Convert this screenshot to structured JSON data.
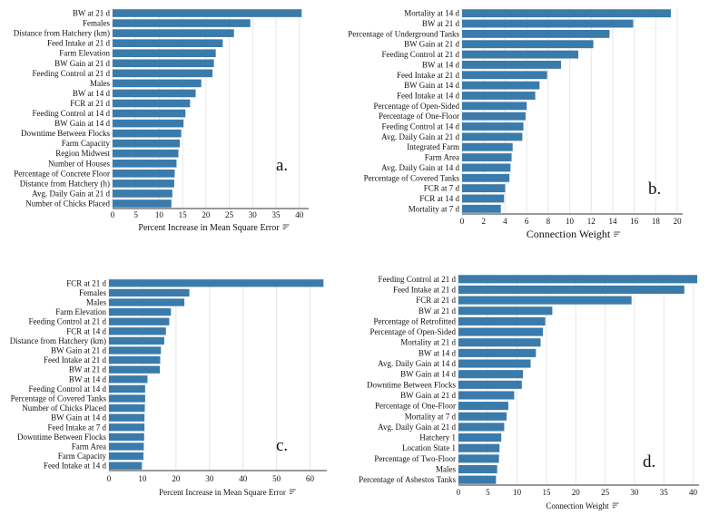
{
  "chart_data": [
    {
      "type": "bar",
      "orientation": "horizontal",
      "panel_label": "a.",
      "xlabel": "Percent Increase in Mean Square Error",
      "axis_icon": "sort-icon",
      "xlim": [
        0,
        42
      ],
      "ticks": [
        "0",
        "5",
        "10",
        "15",
        "20",
        "25",
        "30",
        "35",
        "40"
      ],
      "categories": [
        "BW at 21 d",
        "Females",
        "Distance from Hatchery (km)",
        "Feed Intake at 21 d",
        "Farm Elevation",
        "BW Gain at 21 d",
        "Feeding Control at 21 d",
        "Males",
        "BW at 14 d",
        "FCR at 21 d",
        "Feeding Control at 14 d",
        "BW Gain at 14 d",
        "Downtime Between Flocks",
        "Farm Capacity",
        "Region Midwest",
        "Number of Houses",
        "Percentage of Concrete Floor",
        "Distance from Hatchery (h)",
        "Avg. Daily Gain at 21 d",
        "Number of Chicks Placed"
      ],
      "values": [
        40.5,
        29.5,
        26.0,
        23.6,
        22.1,
        21.7,
        21.4,
        19.0,
        17.8,
        16.6,
        15.6,
        15.2,
        14.7,
        14.4,
        14.1,
        13.7,
        13.3,
        13.2,
        12.8,
        12.6
      ]
    },
    {
      "type": "bar",
      "orientation": "horizontal",
      "panel_label": "b.",
      "xlabel": "Connection Weight",
      "axis_icon": "sort-icon",
      "xlim": [
        0,
        20.5
      ],
      "ticks": [
        "0",
        "2",
        "4",
        "6",
        "8",
        "10",
        "12",
        "14",
        "16",
        "18",
        "20"
      ],
      "categories": [
        "Mortality at 14 d",
        "BW at 21 d",
        "Percentage of Underground Tanks",
        "BW Gain at 21 d",
        "Feeding Control at 21 d",
        "BW at 14 d",
        "Feed Intake at 21 d",
        "BW Gain at 14 d",
        "Feed Intake at 14 d",
        "Percentage of Open-Sided",
        "Percentage of One-Floor",
        "Feeding Control at 14 d",
        "Avg. Daily Gain at 21 d",
        "Integrated Farm",
        "Farm Area",
        "Avg. Daily Gain at 14 d",
        "Percentage of Covered Tanks",
        "FCR at 7 d",
        "FCR at 14 d",
        "Mortality at 7 d"
      ],
      "values": [
        19.4,
        15.9,
        13.7,
        12.2,
        10.8,
        9.2,
        7.9,
        7.2,
        6.8,
        6.0,
        5.9,
        5.7,
        5.6,
        4.7,
        4.6,
        4.5,
        4.4,
        4.0,
        3.9,
        3.6
      ]
    },
    {
      "type": "bar",
      "orientation": "horizontal",
      "panel_label": "c.",
      "xlabel": "Percent Increase in Mean Square Error",
      "axis_icon": "sort-icon",
      "xlim": [
        0,
        65
      ],
      "ticks": [
        "0",
        "10",
        "20",
        "30",
        "40",
        "50",
        "60"
      ],
      "categories": [
        "FCR at 21 d",
        "Females",
        "Males",
        "Farm Elevation",
        "Feeding Control at 21 d",
        "FCR at 14 d",
        "Distance from Hatchery (km)",
        "BW Gain at 21 d",
        "Feed Intake at 21 d",
        "BW at 21 d",
        "BW at 14 d",
        "Feeding Control at 14 d",
        "Percentage of Covered Tanks",
        "Number of Chicks Placed",
        "BW Gain at 14 d",
        "Feed Intake at 7 d",
        "Downtime Between Flocks",
        "Farm Area",
        "Farm Capacity",
        "Feed Intake at 14 d"
      ],
      "values": [
        64.0,
        24.0,
        22.5,
        18.5,
        18.0,
        17.0,
        16.5,
        15.5,
        15.3,
        15.2,
        11.5,
        10.8,
        10.8,
        10.7,
        10.6,
        10.6,
        10.5,
        10.4,
        10.3,
        9.8
      ]
    },
    {
      "type": "bar",
      "orientation": "horizontal",
      "panel_label": "d.",
      "xlabel": "Connection Weight",
      "axis_icon": "sort-icon",
      "xlim": [
        0,
        41
      ],
      "ticks": [
        "0",
        "5",
        "10",
        "15",
        "20",
        "25",
        "30",
        "35",
        "40"
      ],
      "categories": [
        "Feeding Control at 21 d",
        "Feed Intake at 21 d",
        "FCR at 21 d",
        "BW at 21 d",
        "Percentage of Retrofitted",
        "Percentage of Open-Sided",
        "Mortality at 21 d",
        "BW at 14 d",
        "Avg. Daily Gain at 14 d",
        "BW Gain at 14 d",
        "Downtime Between Flocks",
        "BW Gain at 21 d",
        "Percentage of One-Floor",
        "Mortality at 7 d",
        "Avg. Daily Gain at 21 d",
        "Hatchery 1",
        "Location State 1",
        "Percentage of Two-Floor",
        "Males",
        "Percentage of Asbestos Tanks"
      ],
      "values": [
        40.7,
        38.5,
        29.5,
        16.0,
        14.8,
        14.4,
        14.0,
        13.2,
        12.3,
        11.0,
        10.8,
        9.5,
        8.5,
        8.2,
        7.8,
        7.3,
        7.0,
        6.9,
        6.6,
        6.4
      ]
    }
  ]
}
